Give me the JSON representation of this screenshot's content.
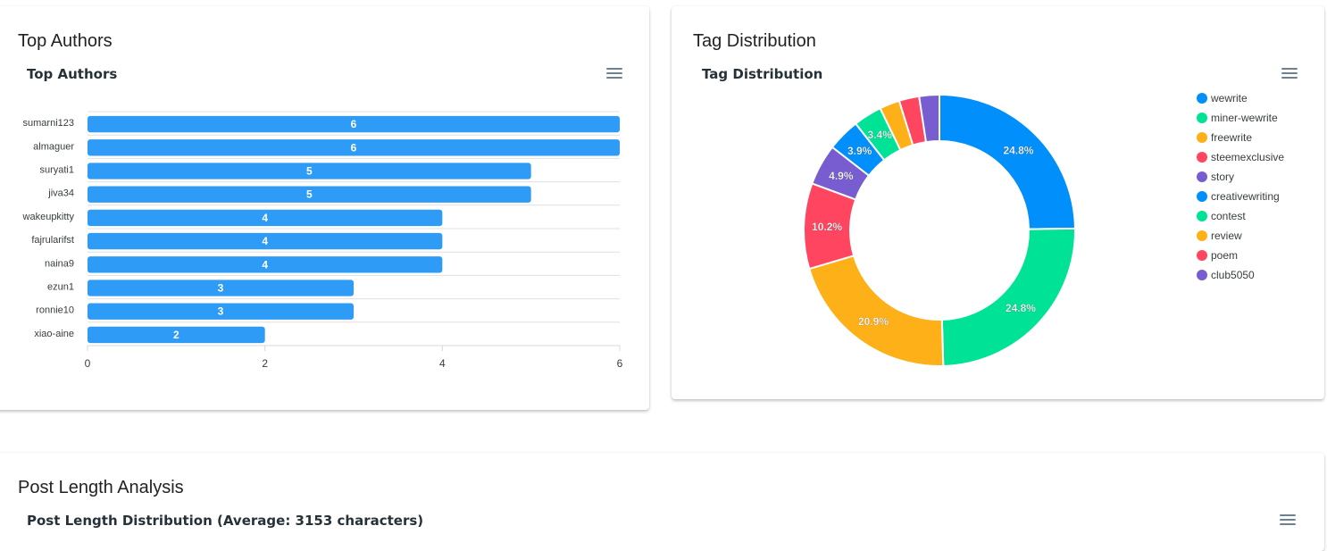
{
  "authors_card": {
    "title": "Top Authors",
    "chart_data": {
      "type": "bar",
      "orientation": "horizontal",
      "title": "Top Authors",
      "categories": [
        "sumarni123",
        "almaguer",
        "suryati1",
        "jiva34",
        "wakeupkitty",
        "fajrularifst",
        "naina9",
        "ezun1",
        "ronnie10",
        "xiao-aine"
      ],
      "values": [
        6,
        6,
        5,
        5,
        4,
        4,
        4,
        3,
        3,
        2
      ],
      "xlim": [
        0,
        6
      ],
      "xticks": [
        "0",
        "2",
        "4",
        "6"
      ],
      "xlabel": "",
      "ylabel": "",
      "color": "#2e9cf6",
      "grid": true
    }
  },
  "tags_card": {
    "title": "Tag Distribution",
    "chart_data": {
      "type": "pie",
      "variant": "donut",
      "title": "Tag Distribution",
      "labels": [
        "wewrite",
        "miner-wewrite",
        "freewrite",
        "steemexclusive",
        "story",
        "creativewriting",
        "contest",
        "review",
        "poem",
        "club5050"
      ],
      "values": [
        24.8,
        24.8,
        20.9,
        10.2,
        4.9,
        3.9,
        3.4,
        2.4,
        2.4,
        2.4
      ],
      "data_labels": [
        "24.8%",
        "24.8%",
        "20.9%",
        "10.2%",
        "4.9%",
        "3.9%",
        "3.4%",
        "",
        "",
        ""
      ],
      "colors": [
        "#008ffb",
        "#00e396",
        "#feb019",
        "#ff4560",
        "#775dd0",
        "#008ffb",
        "#00e396",
        "#feb019",
        "#ff4560",
        "#775dd0"
      ],
      "legend_position": "right"
    }
  },
  "length_card": {
    "title": "Post Length Analysis",
    "chart_title": "Post Length Distribution (Average: 3153 characters)"
  }
}
